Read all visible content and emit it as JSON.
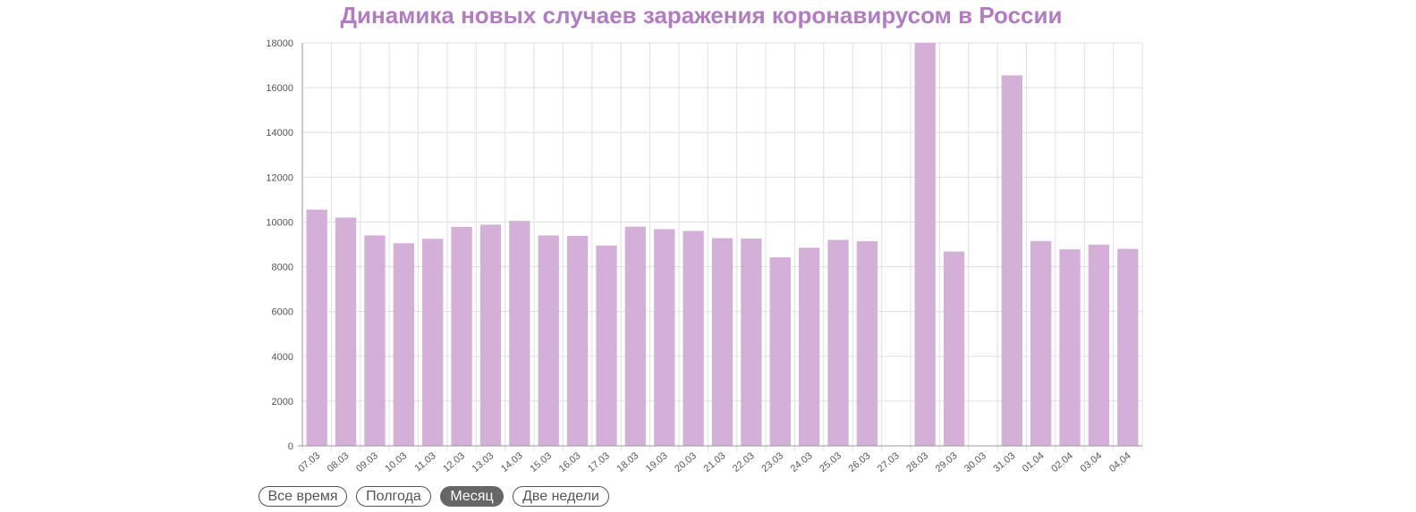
{
  "chart_data": {
    "type": "bar",
    "title": "Динамика новых случаев заражения коронавирусом в России",
    "xlabel": "",
    "ylabel": "",
    "categories": [
      "07.03",
      "08.03",
      "09.03",
      "10.03",
      "11.03",
      "12.03",
      "13.03",
      "14.03",
      "15.03",
      "16.03",
      "17.03",
      "18.03",
      "19.03",
      "20.03",
      "21.03",
      "22.03",
      "23.03",
      "24.03",
      "25.03",
      "26.03",
      "27.03",
      "28.03",
      "29.03",
      "30.03",
      "31.03",
      "01.04",
      "02.04",
      "03.04",
      "04.04"
    ],
    "values": [
      10550,
      10200,
      9400,
      9050,
      9250,
      9780,
      9880,
      10050,
      9400,
      9380,
      8950,
      9790,
      9680,
      9600,
      9280,
      9260,
      8420,
      8850,
      9200,
      9140,
      null,
      18000,
      8680,
      null,
      16550,
      9150,
      8780,
      8990,
      8800
    ],
    "ylim": [
      0,
      18000
    ],
    "yticks": [
      0,
      2000,
      4000,
      6000,
      8000,
      10000,
      12000,
      14000,
      16000,
      18000
    ],
    "grid": true,
    "colors": {
      "bar": "#d4b0d9",
      "title": "#b27cc0",
      "grid": "#e0e0e0",
      "axis": "#999999"
    }
  },
  "filters": [
    {
      "label": "Все время",
      "active": false
    },
    {
      "label": "Полгода",
      "active": false
    },
    {
      "label": "Месяц",
      "active": true
    },
    {
      "label": "Две недели",
      "active": false
    }
  ]
}
